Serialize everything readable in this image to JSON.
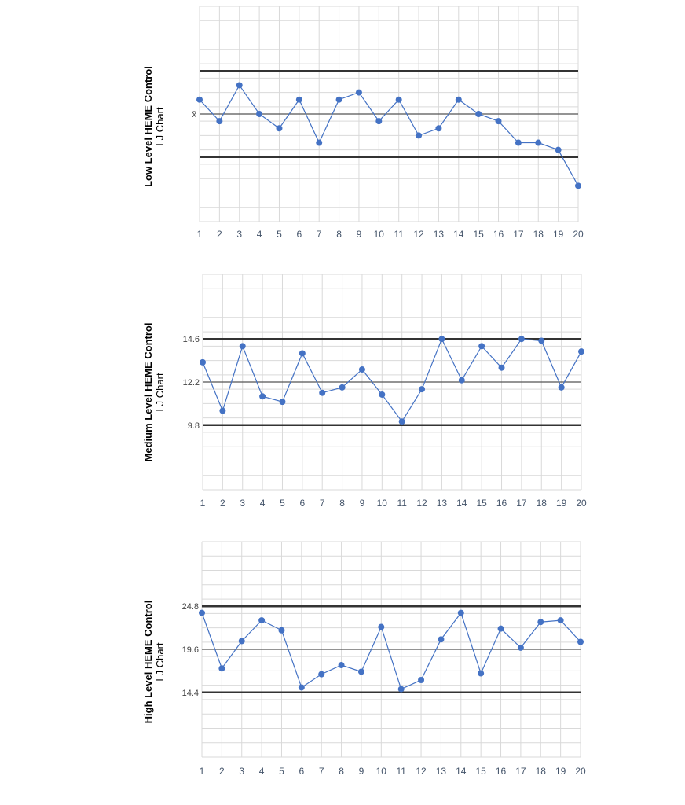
{
  "chart_data": [
    {
      "type": "line",
      "title": "",
      "ylabel": "Low Level HEME Control",
      "ylabel2": "LJ Chart",
      "categories": [
        "1",
        "2",
        "3",
        "4",
        "5",
        "6",
        "7",
        "8",
        "9",
        "10",
        "11",
        "12",
        "13",
        "14",
        "15",
        "16",
        "17",
        "18",
        "19",
        "20"
      ],
      "ref_lines": [
        {
          "value": 3,
          "label": "",
          "style": "bold"
        },
        {
          "value": 0,
          "label": "x̄",
          "style": "thin"
        },
        {
          "value": -3,
          "label": "",
          "style": "bold"
        }
      ],
      "ylim": [
        -7.5,
        7.5
      ],
      "grid": true,
      "color": "#4472C4",
      "values": [
        1,
        -0.5,
        2,
        0,
        -1,
        1,
        -2,
        1,
        1.5,
        -0.5,
        1,
        -1.5,
        -1,
        1,
        0,
        -0.5,
        -2,
        -2,
        -2.5,
        -5
      ]
    },
    {
      "type": "line",
      "title": "",
      "ylabel": "Medium Level HEME Control",
      "ylabel2": "LJ Chart",
      "categories": [
        "1",
        "2",
        "3",
        "4",
        "5",
        "6",
        "7",
        "8",
        "9",
        "10",
        "11",
        "12",
        "13",
        "14",
        "15",
        "16",
        "17",
        "18",
        "19",
        "20"
      ],
      "ref_lines": [
        {
          "value": 14.6,
          "label": "14.6",
          "style": "bold"
        },
        {
          "value": 12.2,
          "label": "12.2",
          "style": "thin"
        },
        {
          "value": 9.8,
          "label": "9.8",
          "style": "bold"
        }
      ],
      "ylim": [
        6.2,
        18.2
      ],
      "grid": true,
      "color": "#4472C4",
      "values": [
        13.3,
        10.6,
        14.2,
        11.4,
        11.1,
        13.8,
        11.6,
        11.9,
        12.9,
        11.5,
        10.0,
        11.8,
        14.6,
        12.3,
        14.2,
        13.0,
        14.6,
        14.5,
        11.9,
        13.9
      ]
    },
    {
      "type": "line",
      "title": "",
      "ylabel": "High Level HEME Control",
      "ylabel2": "LJ Chart",
      "categories": [
        "1",
        "2",
        "3",
        "4",
        "5",
        "6",
        "7",
        "8",
        "9",
        "10",
        "11",
        "12",
        "13",
        "14",
        "15",
        "16",
        "17",
        "18",
        "19",
        "20"
      ],
      "ref_lines": [
        {
          "value": 24.8,
          "label": "24.8",
          "style": "bold"
        },
        {
          "value": 19.6,
          "label": "19.6",
          "style": "thin"
        },
        {
          "value": 14.4,
          "label": "14.4",
          "style": "bold"
        }
      ],
      "ylim": [
        6.6,
        32.6
      ],
      "grid": true,
      "color": "#4472C4",
      "values": [
        24.0,
        17.3,
        20.6,
        23.1,
        21.9,
        15.0,
        16.6,
        17.7,
        16.9,
        22.3,
        14.8,
        15.9,
        20.8,
        24.0,
        16.7,
        22.1,
        19.8,
        22.9,
        23.1,
        20.5
      ]
    }
  ]
}
